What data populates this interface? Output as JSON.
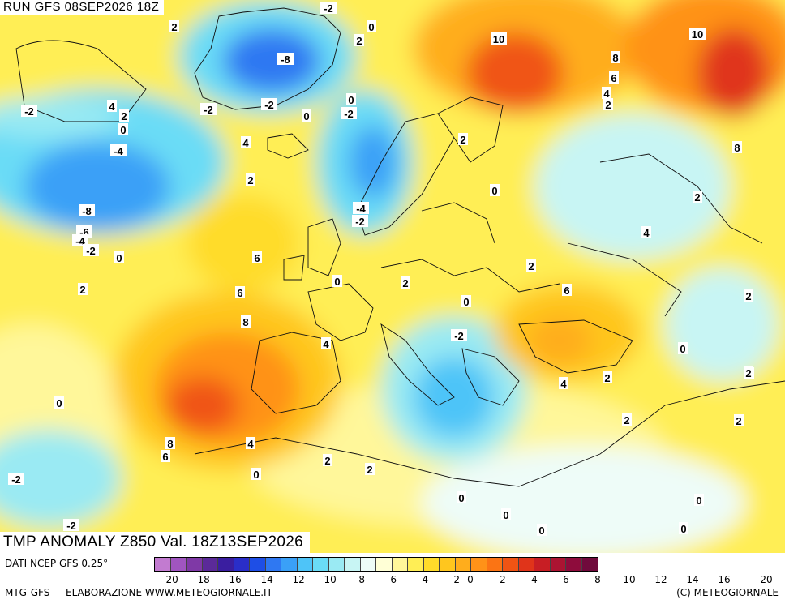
{
  "header": {
    "run": "RUN GFS 08SEP2026 18Z"
  },
  "footer_title": "TMP ANOMALY Z850 Val. 18Z13SEP2026",
  "source": "DATI NCEP GFS 0.25°",
  "credit_left": "MTG-GFS — ELABORAZIONE WWW.METEOGIORNALE.IT",
  "credit_right": "(C) METEOGIORNALE",
  "colorbar": {
    "colors": [
      "#c27bd0",
      "#a055c0",
      "#7f39a6",
      "#5b2a99",
      "#3a1ea0",
      "#2a2ec9",
      "#1e4ee6",
      "#2f78f2",
      "#3aa0f7",
      "#4ec4f8",
      "#6adcf6",
      "#9aeaf3",
      "#c8f5f4",
      "#eefcf8",
      "#ffffd6",
      "#fff79a",
      "#ffee55",
      "#ffdc2a",
      "#ffc61e",
      "#ffad1c",
      "#ff9218",
      "#fb7414",
      "#f05414",
      "#e0341a",
      "#c81e24",
      "#ab1432",
      "#8e0c3c",
      "#700a3c"
    ],
    "ticks": [
      "-20",
      "-18",
      "-16",
      "-14",
      "-12",
      "-10",
      "-8",
      "-6",
      "-4",
      "-2",
      "0",
      "2",
      "4",
      "6",
      "8",
      "10",
      "12",
      "14",
      "16",
      "20"
    ]
  },
  "contour_labels": [
    "-2",
    "2",
    "-2",
    "0",
    "-8",
    "2",
    "0",
    "-2",
    "4",
    "2",
    "0",
    "-2",
    "-2",
    "0",
    "0",
    "-4",
    "4",
    "2",
    "-8",
    "-6",
    "-4",
    "-2",
    "0",
    "6",
    "2",
    "6",
    "8",
    "0",
    "2",
    "4",
    "0",
    "-2",
    "-4",
    "-2",
    "0",
    "10",
    "8",
    "6",
    "4",
    "2",
    "2",
    "0",
    "2",
    "6",
    "4",
    "2",
    "2",
    "2",
    "0",
    "10",
    "8",
    "2",
    "4",
    "2",
    "0",
    "2",
    "2",
    "8",
    "6",
    "4",
    "0",
    "2",
    "2",
    "0",
    "-2",
    "0",
    "0",
    "-2"
  ]
}
